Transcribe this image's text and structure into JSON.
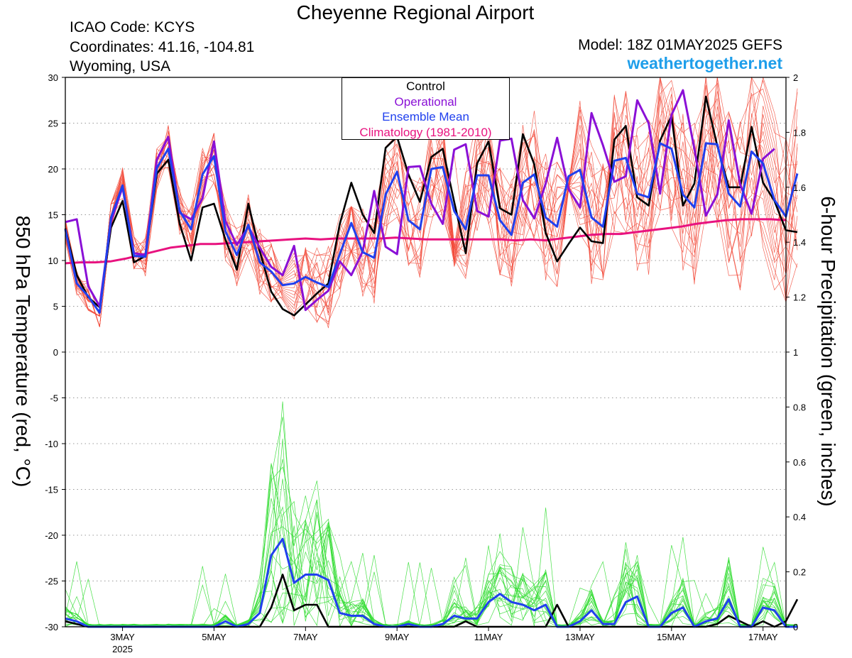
{
  "header": {
    "title": "Cheyenne Regional Airport",
    "icao": "ICAO Code: KCYS",
    "coordinates": "Coordinates: 41.16, -104.81",
    "region": "Wyoming, USA",
    "model": "Model: 18Z 01MAY2025 GEFS",
    "site": "weathertogether.net"
  },
  "colors": {
    "members_temp": "#f24a3a",
    "members_precip": "#33dd33",
    "control": "#000000",
    "operational": "#8a10d6",
    "ensemble_mean": "#2040ee",
    "climatology": "#e8127f",
    "site": "#1e9eea"
  },
  "chart_data": {
    "type": "line",
    "x_type": "datetime (6-hourly, 18Z 01MAY2025 to 00Z 18MAY2025)",
    "xticks": [
      {
        "label": "3MAY",
        "sublabel": "2025"
      },
      {
        "label": "5MAY"
      },
      {
        "label": "7MAY"
      },
      {
        "label": "9MAY"
      },
      {
        "label": "11MAY"
      },
      {
        "label": "13MAY"
      },
      {
        "label": "15MAY"
      },
      {
        "label": "17MAY"
      }
    ],
    "xlim": [
      "2025-05-01T18Z",
      "2025-05-18T00Z"
    ],
    "y_left": {
      "label": "850 hPa Temperature (red, °C)",
      "lim": [
        -30,
        30
      ],
      "ticks": [
        "30",
        "25",
        "20",
        "15",
        "10",
        "5",
        "0",
        "-5",
        "-10",
        "-15",
        "-20",
        "-25",
        "-30"
      ]
    },
    "y_right": {
      "label": "6-hour Precipitation (green, inches)",
      "lim": [
        0,
        2
      ],
      "ticks": [
        "2",
        "1.8",
        "1.6",
        "1.4",
        "1.2",
        "1",
        "0.8",
        "0.6",
        "0.4",
        "0.2",
        "0"
      ]
    },
    "grid": "horizontal dotted",
    "legend": {
      "placement": "top-center",
      "entries": [
        "Control",
        "Operational",
        "Ensemble Mean",
        "Climatology (1981-2010)"
      ]
    },
    "series": [
      {
        "name": "Control",
        "axis": "left",
        "values": [
          13.5,
          8.4,
          6,
          4.9,
          13.6,
          16.5,
          9.8,
          10.5,
          19.5,
          21,
          14,
          10,
          15.8,
          16.2,
          12.3,
          9,
          16.2,
          11,
          6.6,
          4.7,
          4,
          5.2,
          6.4,
          7.5,
          14,
          18.5,
          15,
          13,
          22.3,
          23.5,
          19.4,
          16.4,
          21.3,
          22.2,
          16.4,
          10.8,
          20.6,
          23,
          15.7,
          15,
          23.8,
          20.5,
          13,
          9.9,
          11.8,
          13.6,
          12.1,
          11.9,
          23.2,
          24.7,
          16.9,
          16,
          23.1,
          25.8,
          16,
          18.4,
          27.9,
          22.5,
          18,
          18,
          24.6,
          18.5,
          16.5,
          13.3,
          13.1
        ]
      },
      {
        "name": "Operational",
        "axis": "left",
        "values": [
          14.2,
          14.5,
          7.2,
          5,
          14.3,
          18,
          10.8,
          10.6,
          21,
          23.5,
          15.2,
          14.5,
          16.8,
          23,
          14.3,
          11.7,
          13.7,
          11.4,
          9.3,
          8.4,
          11.6,
          4.6,
          5.7,
          6.7,
          9.9,
          8.4,
          11,
          17.6,
          11.5,
          10.7,
          20.2,
          20.3,
          16.2,
          14,
          22.1,
          22.7,
          15.4,
          14.8,
          23.1,
          23.3,
          16.6,
          14.6,
          18.4,
          23.4,
          17.8,
          15.8,
          26.1,
          22.6,
          18.6,
          19.2,
          27.5,
          25,
          17.3,
          25.9,
          28.6,
          22.2,
          14.9,
          17.2,
          25.3,
          18.3,
          15.1,
          21.1,
          22.2
        ]
      },
      {
        "name": "Ensemble Mean",
        "axis": "left",
        "values": [
          13.4,
          7.5,
          6.1,
          4.3,
          14.7,
          18.2,
          10.5,
          10.4,
          20.1,
          22.2,
          15.4,
          13.4,
          19.4,
          21.4,
          13.2,
          10.6,
          13.9,
          9.8,
          8.8,
          7.3,
          7.5,
          8.2,
          7.6,
          7.1,
          10.7,
          14.1,
          10.9,
          10.3,
          17.2,
          19.7,
          14.4,
          13.4,
          20,
          20.2,
          15.4,
          13.4,
          19.3,
          19.3,
          14.4,
          12.8,
          18.5,
          19.4,
          14.7,
          13.7,
          19.2,
          19.9,
          14.7,
          13.7,
          20.9,
          21.2,
          17.3,
          16.9,
          22.8,
          22.2,
          17.2,
          15.8,
          22.8,
          22.7,
          17.3,
          15.9,
          21.9,
          20.6,
          16.6,
          14.8,
          19.5
        ]
      },
      {
        "name": "Climatology (1981-2010)",
        "axis": "left",
        "values": [
          9.7,
          9.8,
          9.8,
          9.9,
          10.2,
          10.6,
          11,
          11.4,
          11.6,
          11.8,
          11.8,
          11.9,
          12,
          12.1,
          12.2,
          12.3,
          12.4,
          12.3,
          12.4,
          12.4,
          12.4,
          12.4,
          12.5,
          12.4,
          12.3,
          12.3,
          12.3,
          12.3,
          12.3,
          12.3,
          12.2,
          12.3,
          12.2,
          12.4,
          12.6,
          12.8,
          12.9,
          12.9,
          13.1,
          13.3,
          13.5,
          13.7,
          14,
          14.2,
          14.4,
          14.5,
          14.5,
          14.5,
          14.4
        ]
      },
      {
        "name": "Ensemble Mean",
        "axis": "right",
        "values": [
          0.03,
          0.02,
          0,
          0,
          0,
          0,
          0,
          0,
          0,
          0,
          0,
          0,
          0,
          0,
          0.02,
          0,
          0.01,
          0.05,
          0.26,
          0.32,
          0.16,
          0.19,
          0.19,
          0.17,
          0.05,
          0.04,
          0.04,
          0.01,
          0,
          0,
          0.01,
          0,
          0,
          0.01,
          0.04,
          0.03,
          0.03,
          0.09,
          0.12,
          0.09,
          0.08,
          0.06,
          0.08,
          0,
          0,
          0.02,
          0.06,
          0.01,
          0.01,
          0.09,
          0.11,
          0,
          0,
          0.05,
          0.07,
          0,
          0.02,
          0.03,
          0.1,
          0,
          0,
          0.07,
          0.06,
          0,
          0
        ]
      },
      {
        "name": "Control",
        "axis": "right",
        "values": [
          0.02,
          0.01,
          0,
          0,
          0,
          0,
          0,
          0,
          0,
          0,
          0,
          0,
          0,
          0,
          0,
          0,
          0,
          0,
          0.07,
          0.19,
          0.06,
          0.08,
          0.08,
          0,
          0,
          0,
          0,
          0,
          0,
          0,
          0,
          0,
          0,
          0,
          0,
          0.02,
          0,
          0,
          0,
          0,
          0,
          0,
          0,
          0.08,
          0,
          0,
          0,
          0,
          0,
          0,
          0,
          0,
          0,
          0,
          0,
          0,
          0,
          0.01,
          0.04,
          0.02,
          0,
          0.02,
          0,
          0.02,
          0.1
        ]
      }
    ]
  }
}
